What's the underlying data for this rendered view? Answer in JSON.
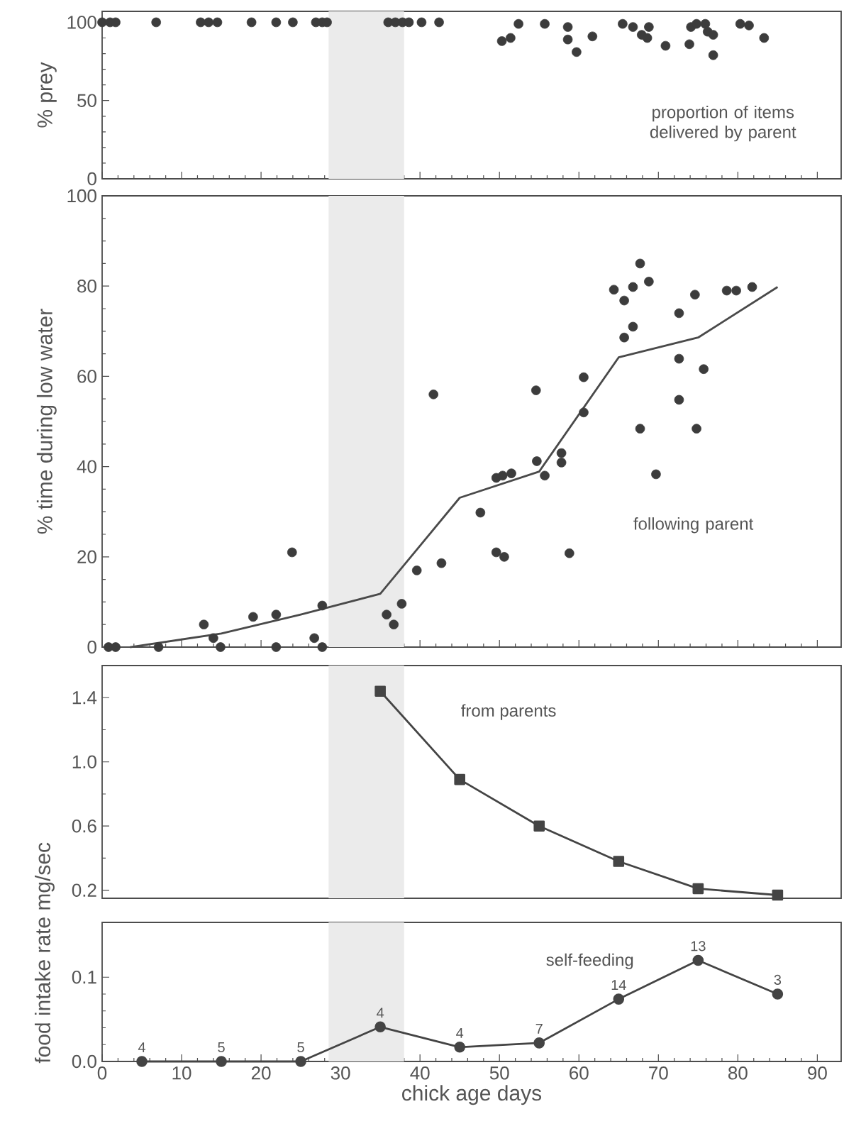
{
  "chart_data": [
    {
      "type": "scatter",
      "ylabel": "% prey",
      "annotations": [
        "proportion of items delivered by parent"
      ],
      "xlim": [
        0,
        93
      ],
      "xticks": [
        0,
        10,
        20,
        30,
        40,
        50,
        60,
        70,
        80,
        90
      ],
      "ylim": [
        0,
        107
      ],
      "yticks": [
        0,
        50,
        100
      ],
      "tick_labels": "y",
      "marker": "circle",
      "bands": [
        {
          "axis": "x",
          "from": 28.5,
          "to": 38,
          "color": "#ebebeb"
        }
      ],
      "series": [
        {
          "color": "#3c3c3c",
          "x": [
            0,
            1,
            1.7,
            6.8,
            12.4,
            13.4,
            14.5,
            18.8,
            21.9,
            24,
            26.9,
            27.7,
            28.3,
            36,
            36.9,
            37.8,
            38.6,
            40.2,
            42.4,
            50.3,
            51.4,
            52.4,
            55.7,
            58.6,
            58.6,
            59.7,
            61.7,
            65.5,
            66.8,
            67.9,
            68.8,
            68.6,
            70.9,
            73.9,
            74.1,
            74.8,
            75.9,
            76.2,
            76.9,
            76.9,
            80.3,
            81.4,
            83.3
          ],
          "values": [
            100,
            100,
            100,
            100,
            100,
            100,
            100,
            100,
            100,
            100,
            100,
            100,
            100,
            100,
            100,
            100,
            100,
            100,
            100,
            88,
            90,
            99,
            99,
            97,
            89,
            81,
            91,
            99,
            97,
            92,
            97,
            90,
            85,
            86,
            97,
            99,
            99,
            94,
            92,
            79,
            99,
            98,
            90
          ]
        }
      ]
    },
    {
      "type": "scatter",
      "ylabel": "% time during low water",
      "annotations": [
        "following parent"
      ],
      "xlim": [
        0,
        93
      ],
      "xticks": [
        0,
        10,
        20,
        30,
        40,
        50,
        60,
        70,
        80,
        90
      ],
      "ylim": [
        0,
        100
      ],
      "yticks": [
        0,
        20,
        40,
        60,
        80,
        100
      ],
      "tick_labels": "y",
      "marker": "circle",
      "bands": [
        {
          "axis": "x",
          "from": 28.5,
          "to": 38,
          "color": "#ebebeb"
        }
      ],
      "series": [
        {
          "color": "#3c3c3c",
          "x": [
            0.8,
            1.7,
            7.1,
            12.8,
            14.0,
            14.9,
            19.0,
            21.9,
            21.9,
            23.9,
            26.7,
            27.7,
            27.7,
            35.8,
            36.7,
            37.7,
            39.6,
            42.7,
            41.7,
            47.6,
            49.6,
            50.4,
            51.5,
            49.6,
            50.6,
            54.6,
            54.7,
            55.7,
            57.8,
            57.8,
            58.8,
            60.6,
            60.6,
            64.4,
            65.7,
            66.8,
            67.7,
            68.8,
            65.7,
            66.8,
            67.7,
            69.7,
            72.6,
            72.6,
            72.6,
            74.6,
            74.8,
            75.7,
            78.6,
            79.8,
            81.8
          ],
          "values": [
            0,
            0,
            0,
            5,
            2,
            0,
            6.7,
            7.2,
            0,
            21,
            2,
            0,
            9.2,
            7.2,
            5,
            9.6,
            17,
            18.6,
            56,
            29.8,
            37.5,
            38,
            38.5,
            21,
            20,
            56.9,
            41.2,
            38,
            43,
            40.9,
            20.8,
            59.8,
            52,
            79.2,
            76.8,
            79.8,
            85,
            81,
            68.6,
            71,
            48.4,
            38.3,
            74,
            63.9,
            54.8,
            78.1,
            48.4,
            61.6,
            79,
            79,
            79.8
          ]
        },
        {
          "type": "line",
          "marker": "none",
          "color": "#4a4a4a",
          "x": [
            3.5,
            15,
            25,
            35,
            45,
            55,
            65,
            75,
            85
          ],
          "values": [
            0,
            3,
            7.2,
            11.8,
            33.1,
            38.9,
            64.2,
            68.6,
            79.8
          ]
        }
      ]
    },
    {
      "type": "line",
      "xlim": [
        0,
        93
      ],
      "ylim": [
        0.15,
        1.6
      ],
      "yticks": [
        {
          "value": 0.2,
          "label": "0.2"
        },
        {
          "value": 0.6,
          "label": "0.6"
        },
        {
          "value": 1.0,
          "label": "1.0"
        },
        {
          "value": 1.4,
          "label": "1.4"
        }
      ],
      "tick_labels": "y",
      "marker": "square",
      "bands": [
        {
          "axis": "x",
          "from": 28.5,
          "to": 38,
          "color": "#ebebeb"
        }
      ],
      "series": [
        {
          "name": "from parents",
          "color": "#444444",
          "x": [
            35,
            45,
            55,
            65,
            75,
            85
          ],
          "values": [
            1.44,
            0.89,
            0.6,
            0.38,
            0.21,
            0.17
          ]
        }
      ]
    },
    {
      "type": "line",
      "xlabel": "chick age   days",
      "ylabel": "food intake rate   mg/sec",
      "annotations": [
        {
          "text": "4",
          "x": 5,
          "y": 0
        },
        {
          "text": "5",
          "x": 15,
          "y": 0
        },
        {
          "text": "5",
          "x": 25,
          "y": 0
        },
        {
          "text": "4",
          "x": 35,
          "y": 0.041
        },
        {
          "text": "4",
          "x": 45,
          "y": 0.017
        },
        {
          "text": "7",
          "x": 55,
          "y": 0.022
        },
        {
          "text": "14",
          "x": 65,
          "y": 0.074
        },
        {
          "text": "13",
          "x": 75,
          "y": 0.12
        },
        {
          "text": "3",
          "x": 85,
          "y": 0.08
        }
      ],
      "xlim": [
        0,
        93
      ],
      "xticks": [
        0,
        10,
        20,
        30,
        40,
        50,
        60,
        70,
        80,
        90
      ],
      "ylim": [
        0,
        0.165
      ],
      "yticks": [
        {
          "value": 0,
          "label": "0.0"
        },
        {
          "value": 0.1,
          "label": "0.1"
        }
      ],
      "marker": "circle",
      "bands": [
        {
          "axis": "x",
          "from": 28.5,
          "to": 38,
          "color": "#ebebeb"
        }
      ],
      "series": [
        {
          "name": "self-feeding",
          "color": "#444444",
          "x": [
            5,
            15,
            25,
            35,
            45,
            55,
            65,
            75,
            85
          ],
          "values": [
            0,
            0,
            0,
            0.041,
            0.017,
            0.022,
            0.074,
            0.12,
            0.08
          ]
        }
      ]
    }
  ]
}
